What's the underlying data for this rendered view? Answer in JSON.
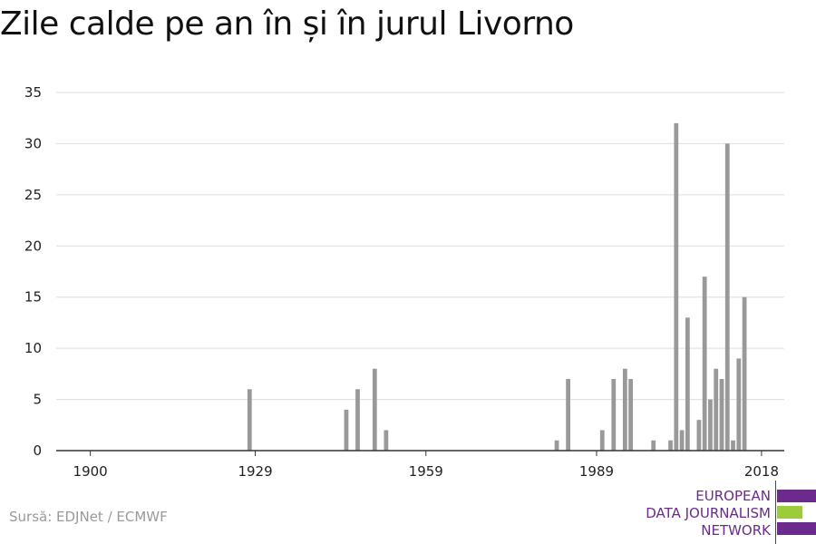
{
  "title": "Zile calde pe an în și în jurul Livorno",
  "source": "Sursă: EDJNet / ECMWF",
  "logo": {
    "lines": [
      "EUROPEAN",
      "DATA JOURNALISM",
      "NETWORK"
    ],
    "colors": {
      "purple": "#6b2a8c",
      "green": "#9ccc3a"
    }
  },
  "colors": {
    "bar": "#999999",
    "grid": "#dddddd",
    "axis": "#333333",
    "text": "#222222"
  },
  "chart_data": {
    "type": "bar",
    "title": "Zile calde pe an în și în jurul Livorno",
    "xlabel": "",
    "ylabel": "",
    "x_ticks": [
      1900,
      1929,
      1959,
      1989,
      2018
    ],
    "y_ticks": [
      0,
      5,
      10,
      15,
      20,
      25,
      30,
      35
    ],
    "xlim": [
      1894,
      2022
    ],
    "ylim": [
      0,
      35
    ],
    "grid": true,
    "series": [
      {
        "x": [
          1928,
          1945,
          1947,
          1950,
          1952,
          1982,
          1984,
          1990,
          1992,
          1994,
          1995,
          1999,
          2002,
          2003,
          2004,
          2005,
          2007,
          2008,
          2009,
          2010,
          2011,
          2012,
          2013,
          2014,
          2015,
          2016
        ],
        "values": [
          6,
          4,
          6,
          8,
          2,
          1,
          7,
          2,
          7,
          8,
          7,
          1,
          1,
          32,
          2,
          13,
          3,
          17,
          5,
          8,
          7,
          30,
          1,
          9,
          15,
          0
        ]
      }
    ]
  }
}
